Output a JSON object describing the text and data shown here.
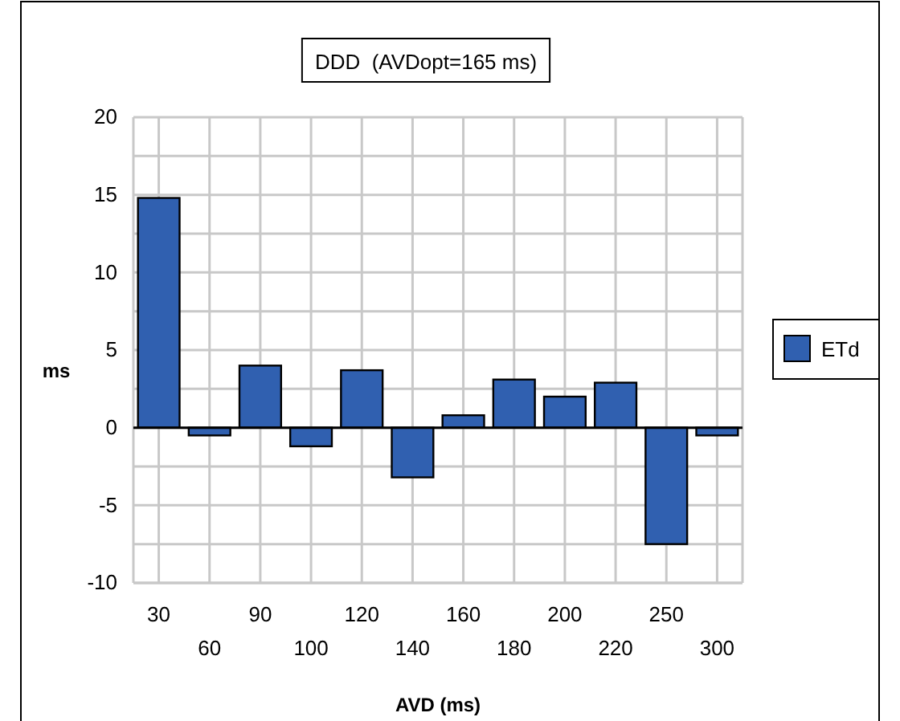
{
  "chart_data": {
    "type": "bar",
    "title": "DDD  (AVDopt=165 ms)",
    "xlabel": "AVD (ms)",
    "ylabel": "ms",
    "categories": [
      "30",
      "60",
      "90",
      "100",
      "120",
      "140",
      "160",
      "180",
      "200",
      "220",
      "250",
      "300"
    ],
    "series": [
      {
        "name": "ETd",
        "color": "#3060b0",
        "values": [
          14.8,
          -0.5,
          4.0,
          -1.2,
          3.7,
          -3.2,
          0.8,
          3.1,
          2.0,
          2.9,
          -7.5,
          -0.5
        ]
      }
    ],
    "ylim": [
      -10,
      20
    ],
    "yticks": [
      -10,
      -5,
      0,
      5,
      10,
      15,
      20
    ],
    "grid": true,
    "legend": "right"
  }
}
